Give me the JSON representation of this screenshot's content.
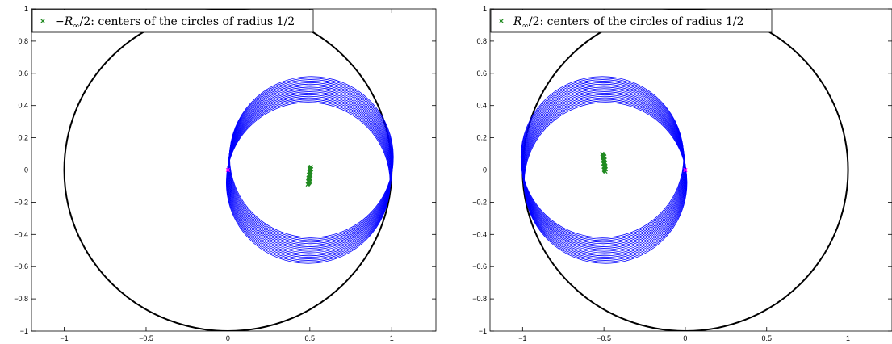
{
  "chart_data": [
    {
      "type": "line",
      "title": "",
      "xlabel": "",
      "ylabel": "",
      "xlim": [
        -1.2,
        1.27
      ],
      "ylim": [
        -1,
        1
      ],
      "xticks": [
        -1,
        -0.5,
        0,
        0.5,
        1
      ],
      "xtick_labels": [
        "−1",
        "−0.5",
        "0",
        "0.5",
        "1"
      ],
      "yticks": [
        -1,
        -0.8,
        -0.6,
        -0.4,
        -0.2,
        0,
        0.2,
        0.4,
        0.6,
        0.8,
        1
      ],
      "ytick_labels": [
        "−1",
        "−0.8",
        "−0.6",
        "−0.4",
        "−0.2",
        "0",
        "0.2",
        "0.4",
        "0.6",
        "0.8",
        "1"
      ],
      "grid": false,
      "legend": {
        "position": "top-left",
        "entries": [
          {
            "marker": "x",
            "label_prefix": "−",
            "label_symbol": "R",
            "label_subscript": "∞",
            "label_rest": "/2: centers of the circles of radius 1/2"
          }
        ]
      },
      "series": [
        {
          "name": "unit circle",
          "shape": "circle",
          "center": [
            0,
            0
          ],
          "radius": 1,
          "color": "#000000"
        },
        {
          "name": "circles of radius 1/2",
          "shape": "circle-family",
          "radius": 0.5,
          "count": 18,
          "center_x_range": [
            0.49,
            0.51
          ],
          "center_y_range": [
            -0.08,
            0.08
          ],
          "color": "#0000ff"
        },
        {
          "name": "−R∞/2: centers of the circles of radius 1/2",
          "shape": "points",
          "marker": "x",
          "x_range": [
            0.487,
            0.51
          ],
          "y_range": [
            -0.09,
            0.02
          ],
          "color": "#228B22"
        },
        {
          "name": "origin",
          "shape": "points",
          "marker": "x",
          "points": [
            [
              0,
              0
            ]
          ],
          "color": "#ff00ff"
        }
      ]
    },
    {
      "type": "line",
      "title": "",
      "xlabel": "",
      "ylabel": "",
      "xlim": [
        -1.2,
        1.27
      ],
      "ylim": [
        -1,
        1
      ],
      "xticks": [
        -1,
        -0.5,
        0,
        0.5,
        1
      ],
      "xtick_labels": [
        "−1",
        "−0.5",
        "0",
        "0.5",
        "1"
      ],
      "yticks": [
        -1,
        -0.8,
        -0.6,
        -0.4,
        -0.2,
        0,
        0.2,
        0.4,
        0.6,
        0.8,
        1
      ],
      "ytick_labels": [
        "−1",
        "−0.8",
        "−0.6",
        "−0.4",
        "−0.2",
        "0",
        "0.2",
        "0.4",
        "0.6",
        "0.8",
        "1"
      ],
      "grid": false,
      "legend": {
        "position": "top-left",
        "entries": [
          {
            "marker": "x",
            "label_prefix": "",
            "label_symbol": "R",
            "label_subscript": "∞",
            "label_rest": "/2: centers of the circles of radius 1/2"
          }
        ]
      },
      "series": [
        {
          "name": "unit circle",
          "shape": "circle",
          "center": [
            0,
            0
          ],
          "radius": 1,
          "color": "#000000"
        },
        {
          "name": "circles of radius 1/2",
          "shape": "circle-family",
          "radius": 0.5,
          "count": 18,
          "center_x_range": [
            -0.51,
            -0.49
          ],
          "center_y_range": [
            0.08,
            -0.08
          ],
          "color": "#0000ff"
        },
        {
          "name": "R∞/2: centers of the circles of radius 1/2",
          "shape": "points",
          "marker": "x",
          "x_range": [
            -0.51,
            -0.487
          ],
          "y_range": [
            0.1,
            -0.01
          ],
          "color": "#228B22"
        },
        {
          "name": "origin",
          "shape": "points",
          "marker": "x",
          "points": [
            [
              0,
              0
            ]
          ],
          "color": "#ff00ff"
        }
      ]
    }
  ]
}
